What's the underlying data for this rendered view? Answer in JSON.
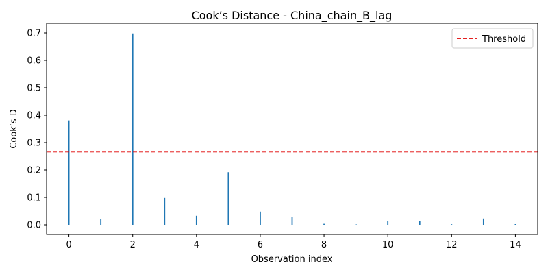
{
  "chart_data": {
    "type": "stem",
    "title": "Cook’s Distance - China_chain_B_lag",
    "xlabel": "Observation index",
    "ylabel": "Cook’s D",
    "x": [
      0,
      1,
      2,
      3,
      4,
      5,
      6,
      7,
      8,
      9,
      10,
      11,
      12,
      13,
      14
    ],
    "values": [
      0.381,
      0.022,
      0.698,
      0.098,
      0.033,
      0.192,
      0.048,
      0.028,
      0.006,
      0.004,
      0.013,
      0.013,
      0.002,
      0.023,
      0.004
    ],
    "xlim": [
      -0.7,
      14.7
    ],
    "ylim": [
      -0.035,
      0.735
    ],
    "xticks": [
      "0",
      "2",
      "4",
      "6",
      "8",
      "10",
      "12",
      "14"
    ],
    "yticks": [
      "0.0",
      "0.1",
      "0.2",
      "0.3",
      "0.4",
      "0.5",
      "0.6",
      "0.7"
    ],
    "threshold": 0.2667,
    "legend": {
      "label": "Threshold",
      "position": "top-right"
    },
    "colors": {
      "stem": "#1f77b4",
      "threshold": "#e00000"
    },
    "grid": false
  }
}
